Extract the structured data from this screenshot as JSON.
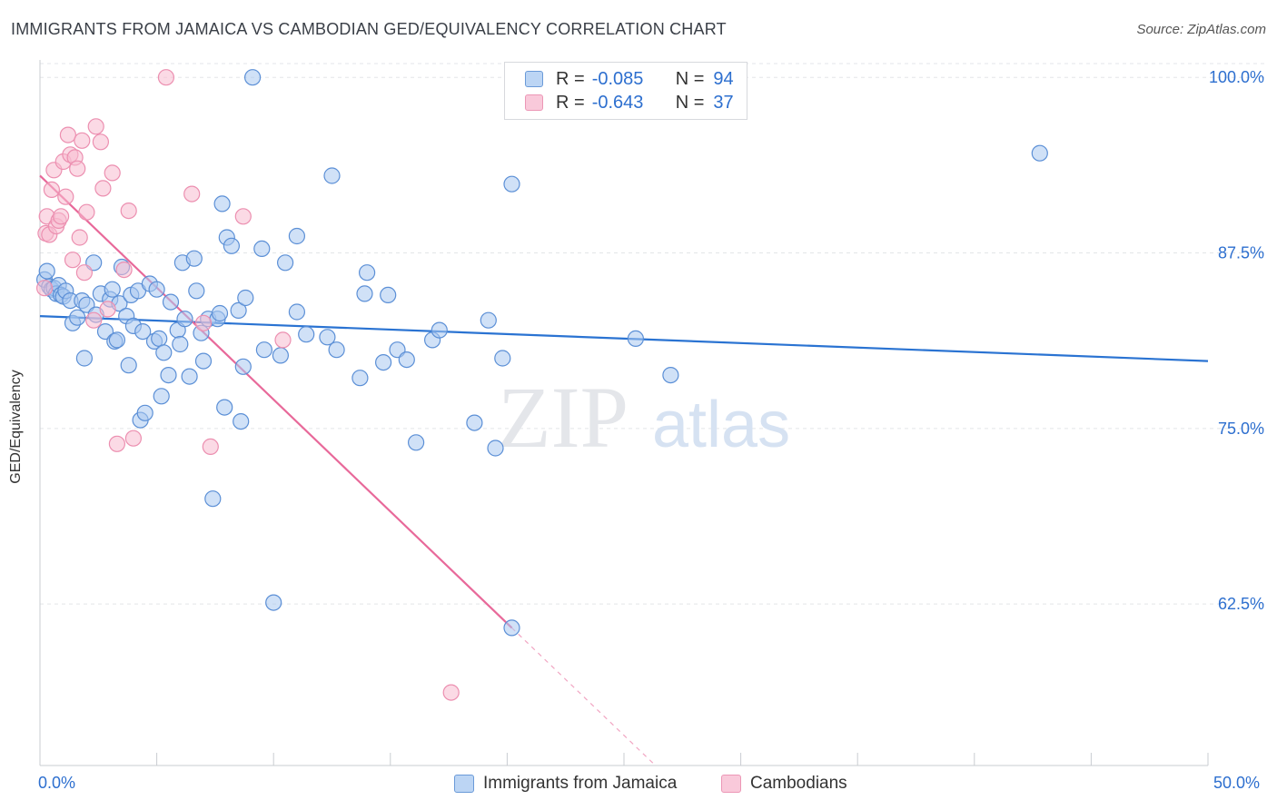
{
  "header": {
    "title": "IMMIGRANTS FROM JAMAICA VS CAMBODIAN GED/EQUIVALENCY CORRELATION CHART",
    "source": "Source: ZipAtlas.com"
  },
  "watermark": {
    "zip": "ZIP",
    "atlas": "atlas"
  },
  "legend_top": {
    "rows": [
      {
        "r_label": "R =",
        "r_value": "-0.085",
        "n_label": "N =",
        "n_value": "94"
      },
      {
        "r_label": "R =",
        "r_value": "-0.643",
        "n_label": "N =",
        "n_value": "37"
      }
    ]
  },
  "legend_bottom": {
    "series1": "Immigrants from Jamaica",
    "series2": "Cambodians"
  },
  "colors": {
    "blue_fill": "#a9c8f0",
    "blue_stroke": "#5b8fd6",
    "blue_line": "#2a73d2",
    "pink_fill": "#f7bcd0",
    "pink_stroke": "#ec8fb0",
    "pink_line": "#e8699a",
    "axis_text": "#2d6fcf",
    "grid": "#e3e5e8"
  },
  "chart_data": {
    "type": "scatter",
    "title": "IMMIGRANTS FROM JAMAICA VS CAMBODIAN GED/EQUIVALENCY CORRELATION CHART",
    "xlabel": "",
    "ylabel": "GED/Equivalency",
    "xlim": [
      0,
      50
    ],
    "ylim": [
      51.0,
      101.5
    ],
    "x_tick_labels": [
      "0.0%",
      "50.0%"
    ],
    "y_ticks": [
      62.5,
      75.0,
      87.5,
      100.0
    ],
    "y_tick_labels": [
      "62.5%",
      "75.0%",
      "87.5%",
      "100.0%"
    ],
    "grid": true,
    "series": [
      {
        "name": "Immigrants from Jamaica",
        "color": "#a9c8f0",
        "trendline": {
          "x": [
            0,
            50
          ],
          "y": [
            83.0,
            79.8
          ]
        },
        "points": [
          [
            0.2,
            85.6
          ],
          [
            0.3,
            86.2
          ],
          [
            0.4,
            85.1
          ],
          [
            0.5,
            84.9
          ],
          [
            0.6,
            85.0
          ],
          [
            0.7,
            84.6
          ],
          [
            0.8,
            85.2
          ],
          [
            0.9,
            84.5
          ],
          [
            1.0,
            84.4
          ],
          [
            1.1,
            84.8
          ],
          [
            1.3,
            84.1
          ],
          [
            1.4,
            82.5
          ],
          [
            1.6,
            82.9
          ],
          [
            1.8,
            84.1
          ],
          [
            1.9,
            80.0
          ],
          [
            2.0,
            83.8
          ],
          [
            2.3,
            86.8
          ],
          [
            2.4,
            83.1
          ],
          [
            2.6,
            84.6
          ],
          [
            2.8,
            81.9
          ],
          [
            3.0,
            84.2
          ],
          [
            3.1,
            84.9
          ],
          [
            3.2,
            81.2
          ],
          [
            3.3,
            81.3
          ],
          [
            3.4,
            83.9
          ],
          [
            3.5,
            86.5
          ],
          [
            3.7,
            83.0
          ],
          [
            3.8,
            79.5
          ],
          [
            3.9,
            84.5
          ],
          [
            4.0,
            82.3
          ],
          [
            4.2,
            84.8
          ],
          [
            4.3,
            75.6
          ],
          [
            4.4,
            81.9
          ],
          [
            4.5,
            76.1
          ],
          [
            4.7,
            85.3
          ],
          [
            4.9,
            81.2
          ],
          [
            5.0,
            84.9
          ],
          [
            5.1,
            81.4
          ],
          [
            5.2,
            77.3
          ],
          [
            5.3,
            80.4
          ],
          [
            5.5,
            78.8
          ],
          [
            5.6,
            84.0
          ],
          [
            5.9,
            82.0
          ],
          [
            6.0,
            81.0
          ],
          [
            6.1,
            86.8
          ],
          [
            6.2,
            82.8
          ],
          [
            6.4,
            78.7
          ],
          [
            6.6,
            87.1
          ],
          [
            6.7,
            84.8
          ],
          [
            6.9,
            81.8
          ],
          [
            7.0,
            79.8
          ],
          [
            7.2,
            82.8
          ],
          [
            7.4,
            70.0
          ],
          [
            7.6,
            82.8
          ],
          [
            7.7,
            83.2
          ],
          [
            7.8,
            91.0
          ],
          [
            7.9,
            76.5
          ],
          [
            8.0,
            88.6
          ],
          [
            8.2,
            88.0
          ],
          [
            8.5,
            83.4
          ],
          [
            8.6,
            75.5
          ],
          [
            8.7,
            79.4
          ],
          [
            8.8,
            84.3
          ],
          [
            9.5,
            87.8
          ],
          [
            9.1,
            100.0
          ],
          [
            9.6,
            80.6
          ],
          [
            10.0,
            62.6
          ],
          [
            10.3,
            80.2
          ],
          [
            10.5,
            86.8
          ],
          [
            11.0,
            83.3
          ],
          [
            11.0,
            88.7
          ],
          [
            11.4,
            81.7
          ],
          [
            12.3,
            81.5
          ],
          [
            12.5,
            93.0
          ],
          [
            12.7,
            80.6
          ],
          [
            13.7,
            78.6
          ],
          [
            13.9,
            84.6
          ],
          [
            14.0,
            86.1
          ],
          [
            14.7,
            79.7
          ],
          [
            14.9,
            84.5
          ],
          [
            15.3,
            80.6
          ],
          [
            15.7,
            79.9
          ],
          [
            16.1,
            74.0
          ],
          [
            16.8,
            81.3
          ],
          [
            17.1,
            82.0
          ],
          [
            18.6,
            75.4
          ],
          [
            19.2,
            82.7
          ],
          [
            19.5,
            73.6
          ],
          [
            19.8,
            80.0
          ],
          [
            20.2,
            92.4
          ],
          [
            20.2,
            60.8
          ],
          [
            25.5,
            81.4
          ],
          [
            27.0,
            78.8
          ],
          [
            42.8,
            94.6
          ]
        ]
      },
      {
        "name": "Cambodians",
        "color": "#f7bcd0",
        "trendline": {
          "x": [
            0,
            20.2
          ],
          "y": [
            93.0,
            60.8
          ]
        },
        "points": [
          [
            0.2,
            85.0
          ],
          [
            0.25,
            88.9
          ],
          [
            0.3,
            90.1
          ],
          [
            0.4,
            88.8
          ],
          [
            0.5,
            92.0
          ],
          [
            0.6,
            93.4
          ],
          [
            0.7,
            89.4
          ],
          [
            0.8,
            89.8
          ],
          [
            0.9,
            90.1
          ],
          [
            1.0,
            94.0
          ],
          [
            1.1,
            91.5
          ],
          [
            1.2,
            95.9
          ],
          [
            1.3,
            94.5
          ],
          [
            1.4,
            87.0
          ],
          [
            1.5,
            94.3
          ],
          [
            1.6,
            93.5
          ],
          [
            1.7,
            88.6
          ],
          [
            1.8,
            95.5
          ],
          [
            1.9,
            86.1
          ],
          [
            2.0,
            90.4
          ],
          [
            2.3,
            82.7
          ],
          [
            2.4,
            96.5
          ],
          [
            2.6,
            95.4
          ],
          [
            2.7,
            92.1
          ],
          [
            2.9,
            83.5
          ],
          [
            3.1,
            93.2
          ],
          [
            3.3,
            73.9
          ],
          [
            3.6,
            86.3
          ],
          [
            3.8,
            90.5
          ],
          [
            4.0,
            74.3
          ],
          [
            5.4,
            100.0
          ],
          [
            6.5,
            91.7
          ],
          [
            7.0,
            82.5
          ],
          [
            7.3,
            73.7
          ],
          [
            8.7,
            90.1
          ],
          [
            10.4,
            81.3
          ],
          [
            17.6,
            56.2
          ]
        ]
      }
    ]
  }
}
